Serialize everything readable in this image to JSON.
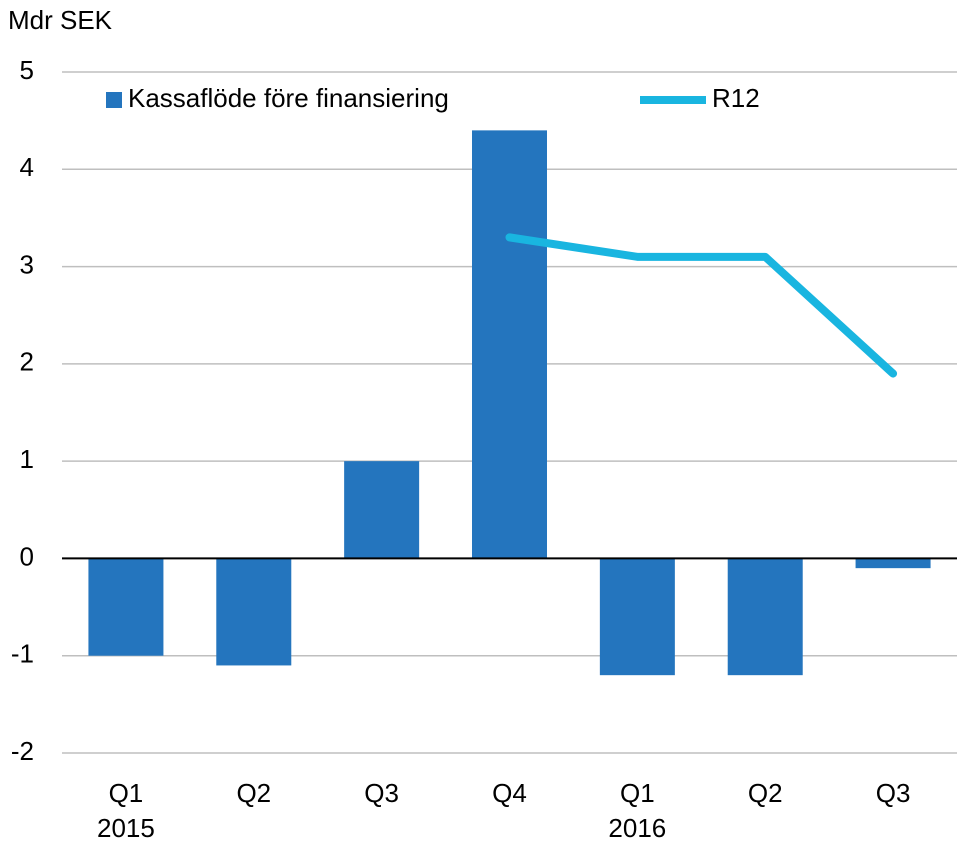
{
  "chart_data": {
    "type": "bar",
    "y_axis_label": "Mdr SEK",
    "categories": [
      "Q1",
      "Q2",
      "Q3",
      "Q4",
      "Q1",
      "Q2",
      "Q3"
    ],
    "category_groups": [
      "2015",
      null,
      null,
      null,
      "2016",
      null,
      null
    ],
    "series": [
      {
        "name": "Kassaflöde före finansiering",
        "type": "bar",
        "color": "#2475be",
        "values": [
          -1,
          -1.1,
          1,
          4.4,
          -1.2,
          -1.2,
          -0.1
        ]
      },
      {
        "name": "R12",
        "type": "line",
        "color": "#19b5e0",
        "values": [
          null,
          null,
          null,
          3.3,
          3.1,
          3.1,
          1.9
        ]
      }
    ],
    "ylim": [
      -2,
      5
    ],
    "yticks": [
      -2,
      -1,
      0,
      1,
      2,
      3,
      4,
      5
    ],
    "grid": true,
    "legend": "top"
  }
}
